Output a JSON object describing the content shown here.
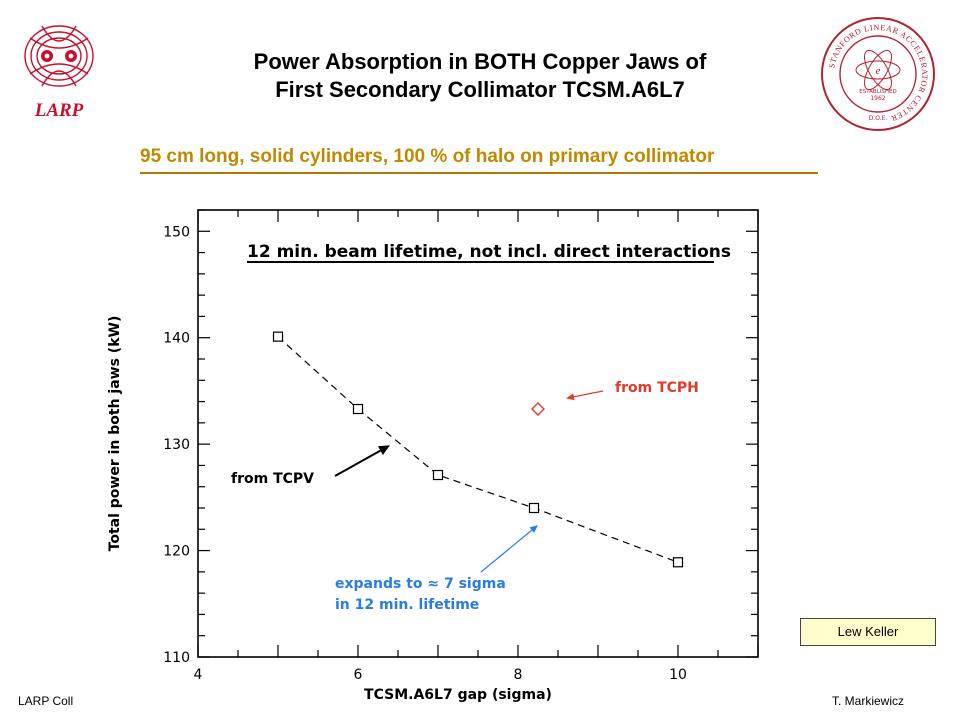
{
  "slide": {
    "title_line1": "Power Absorption in BOTH Copper Jaws of",
    "title_line2": "First Secondary Collimator TCSM.A6L7",
    "subtitle": "95 cm long, solid cylinders, 100 % of halo on primary collimator",
    "left_logo_text": "LARP",
    "right_logo_ring_text": "STANFORD LINEAR ACCELERATOR CENTER",
    "right_logo_established": "ESTABLISHED",
    "right_logo_year": "1962",
    "right_logo_doe": "D.O.E.",
    "credit": "Lew Keller",
    "footer_left": "LARP Coll",
    "footer_right": "T. Markiewicz"
  },
  "colors": {
    "subtitle": "#c08a00",
    "red_annotation": "#e03a2a",
    "blue_annotation": "#2a7de0",
    "credit_box": "#ffffcc",
    "larp_red": "#c8102e",
    "slac_red": "#b22234"
  },
  "chart_data": {
    "type": "scatter",
    "title": "12 min. beam lifetime, not incl. direct interactions",
    "xlabel": "TCSM.A6L7 gap (sigma)",
    "ylabel": "Total power in both jaws (kW)",
    "xlim": [
      4,
      11
    ],
    "ylim": [
      110,
      152
    ],
    "x_ticks": [
      "4",
      "6",
      "8",
      "10"
    ],
    "y_ticks": [
      "110",
      "120",
      "130",
      "140",
      "150"
    ],
    "grid": false,
    "series": [
      {
        "marker": "square",
        "line": "dashed",
        "points": [
          {
            "x": 5.0,
            "y": 140.1
          },
          {
            "x": 6.0,
            "y": 133.3
          },
          {
            "x": 7.0,
            "y": 127.1
          },
          {
            "x": 8.2,
            "y": 124.0
          },
          {
            "x": 10.0,
            "y": 118.9
          }
        ]
      },
      {
        "marker": "diamond",
        "line": "none",
        "color": "#e03a2a",
        "points": [
          {
            "x": 8.25,
            "y": 133.3
          }
        ]
      }
    ],
    "annotations": [
      {
        "text": "from TCPH",
        "color": "#e03a2a",
        "target": {
          "x": 8.6,
          "y": 134.3
        }
      },
      {
        "text": "from TCPV",
        "color": "#000000",
        "target": {
          "x": 6.4,
          "y": 129.9
        }
      },
      {
        "lines": [
          "expands to ≈ 7 sigma",
          "in 12 min. lifetime"
        ],
        "color": "#2a7de0",
        "target": {
          "x": 8.25,
          "y": 122.4
        }
      }
    ]
  }
}
